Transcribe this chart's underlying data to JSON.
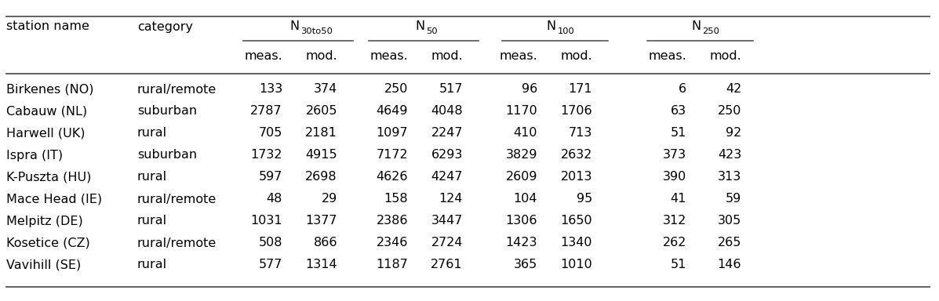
{
  "rows": [
    [
      "Birkenes (NO)",
      "rural/remote",
      "133",
      "374",
      "250",
      "517",
      "96",
      "171",
      "6",
      "42"
    ],
    [
      "Cabauw (NL)",
      "suburban",
      "2787",
      "2605",
      "4649",
      "4048",
      "1170",
      "1706",
      "63",
      "250"
    ],
    [
      "Harwell (UK)",
      "rural",
      "705",
      "2181",
      "1097",
      "2247",
      "410",
      "713",
      "51",
      "92"
    ],
    [
      "Ispra (IT)",
      "suburban",
      "1732",
      "4915",
      "7172",
      "6293",
      "3829",
      "2632",
      "373",
      "423"
    ],
    [
      "K-Puszta (HU)",
      "rural",
      "597",
      "2698",
      "4626",
      "4247",
      "2609",
      "2013",
      "390",
      "313"
    ],
    [
      "Mace Head (IE)",
      "rural/remote",
      "48",
      "29",
      "158",
      "124",
      "104",
      "95",
      "41",
      "59"
    ],
    [
      "Melpitz (DE)",
      "rural",
      "1031",
      "1377",
      "2386",
      "3447",
      "1306",
      "1650",
      "312",
      "305"
    ],
    [
      "Kosetice (CZ)",
      "rural/remote",
      "508",
      "866",
      "2346",
      "2724",
      "1423",
      "1340",
      "262",
      "265"
    ],
    [
      "Vavihill (SE)",
      "rural",
      "577",
      "1314",
      "1187",
      "2761",
      "365",
      "1010",
      "51",
      "146"
    ]
  ],
  "group_subs": [
    "30to50",
    "50",
    "100",
    "250"
  ],
  "bg_color": "#ffffff",
  "text_color": "#000000",
  "line_color": "#555555",
  "font_size": 11.5,
  "font_family": "DejaVu Sans"
}
